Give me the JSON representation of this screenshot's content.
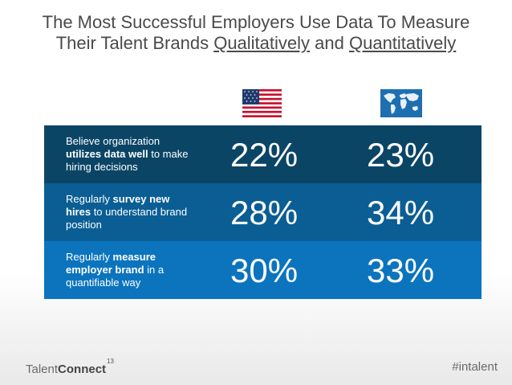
{
  "title": {
    "line1": "The Most Successful Employers Use Data To Measure",
    "line2_prefix": "Their Talent Brands ",
    "line2_q1": "Qualitatively",
    "line2_mid": " and ",
    "line2_q2": "Quantitatively"
  },
  "columns": [
    {
      "icon": "us-flag-icon"
    },
    {
      "icon": "world-map-icon"
    }
  ],
  "rows": [
    {
      "desc_pre": "Believe organization",
      "desc_bold": "utilizes data well",
      "desc_post": " to make hiring decisions",
      "us": "22%",
      "global": "23%",
      "color": "#0b4566"
    },
    {
      "desc_pre": "Regularly ",
      "desc_bold": "survey new hires",
      "desc_post": " to understand brand position",
      "us": "28%",
      "global": "34%",
      "color": "#0a5e94"
    },
    {
      "desc_pre": "Regularly ",
      "desc_bold": "measure employer brand",
      "desc_post": " in a quantifiable way",
      "us": "30%",
      "global": "33%",
      "color": "#0b74bd"
    }
  ],
  "footer": {
    "logo_light": "Talent",
    "logo_bold": "Connect",
    "logo_sup": "13",
    "hashtag": "#intalent"
  }
}
